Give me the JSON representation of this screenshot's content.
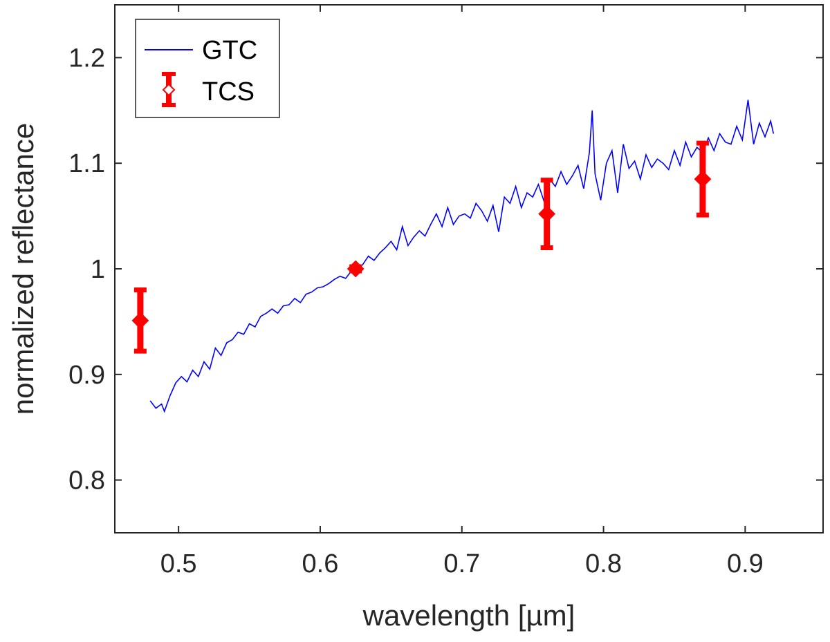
{
  "chart_data": {
    "type": "line",
    "title": "",
    "xlabel": "wavelength [µm]",
    "ylabel": "normalized reflectance",
    "xlim": [
      0.455,
      0.955
    ],
    "ylim": [
      0.75,
      1.25
    ],
    "xticks": [
      0.5,
      0.6,
      0.7,
      0.8,
      0.9
    ],
    "xtick_labels": [
      "0.5",
      "0.6",
      "0.7",
      "0.8",
      "0.9"
    ],
    "yticks": [
      0.8,
      0.9,
      1.0,
      1.1,
      1.2
    ],
    "ytick_labels": [
      "0.8",
      "0.9",
      "1",
      "1.1",
      "1.2"
    ],
    "grid": false,
    "legend": {
      "position": "top-left",
      "entries": [
        "GTC",
        "TCS"
      ]
    },
    "series": [
      {
        "name": "GTC",
        "kind": "line",
        "color": "#0000ff",
        "x": [
          0.48,
          0.484,
          0.488,
          0.49,
          0.494,
          0.498,
          0.502,
          0.506,
          0.51,
          0.514,
          0.518,
          0.522,
          0.526,
          0.53,
          0.534,
          0.538,
          0.542,
          0.546,
          0.55,
          0.554,
          0.558,
          0.562,
          0.566,
          0.57,
          0.574,
          0.578,
          0.582,
          0.586,
          0.59,
          0.594,
          0.598,
          0.602,
          0.606,
          0.61,
          0.614,
          0.618,
          0.622,
          0.626,
          0.63,
          0.634,
          0.638,
          0.642,
          0.646,
          0.65,
          0.654,
          0.658,
          0.662,
          0.666,
          0.67,
          0.674,
          0.678,
          0.682,
          0.686,
          0.69,
          0.694,
          0.698,
          0.702,
          0.706,
          0.71,
          0.714,
          0.718,
          0.722,
          0.726,
          0.73,
          0.734,
          0.738,
          0.742,
          0.746,
          0.75,
          0.754,
          0.758,
          0.762,
          0.766,
          0.77,
          0.774,
          0.778,
          0.782,
          0.786,
          0.79,
          0.792,
          0.794,
          0.798,
          0.802,
          0.806,
          0.81,
          0.814,
          0.818,
          0.822,
          0.826,
          0.83,
          0.834,
          0.838,
          0.842,
          0.846,
          0.85,
          0.854,
          0.858,
          0.862,
          0.866,
          0.87,
          0.874,
          0.878,
          0.882,
          0.886,
          0.89,
          0.894,
          0.898,
          0.902,
          0.906,
          0.91,
          0.914,
          0.918,
          0.92
        ],
        "y": [
          0.875,
          0.868,
          0.872,
          0.865,
          0.88,
          0.892,
          0.898,
          0.893,
          0.904,
          0.898,
          0.912,
          0.905,
          0.925,
          0.918,
          0.93,
          0.933,
          0.94,
          0.938,
          0.948,
          0.945,
          0.955,
          0.958,
          0.962,
          0.958,
          0.965,
          0.966,
          0.972,
          0.968,
          0.976,
          0.978,
          0.982,
          0.983,
          0.986,
          0.99,
          0.993,
          0.991,
          0.998,
          1.0,
          1.004,
          1.012,
          1.008,
          1.015,
          1.02,
          1.026,
          1.018,
          1.04,
          1.022,
          1.03,
          1.036,
          1.031,
          1.042,
          1.052,
          1.04,
          1.058,
          1.042,
          1.05,
          1.052,
          1.048,
          1.062,
          1.055,
          1.045,
          1.06,
          1.035,
          1.068,
          1.062,
          1.078,
          1.058,
          1.072,
          1.068,
          1.08,
          1.064,
          1.085,
          1.078,
          1.092,
          1.08,
          1.088,
          1.098,
          1.076,
          1.11,
          1.15,
          1.09,
          1.065,
          1.1,
          1.112,
          1.072,
          1.118,
          1.095,
          1.102,
          1.085,
          1.108,
          1.096,
          1.104,
          1.1,
          1.094,
          1.112,
          1.098,
          1.12,
          1.106,
          1.115,
          1.11,
          1.124,
          1.112,
          1.128,
          1.12,
          1.118,
          1.135,
          1.122,
          1.16,
          1.118,
          1.138,
          1.125,
          1.14,
          1.128
        ]
      },
      {
        "name": "TCS",
        "kind": "errorbar",
        "color": "#ff0000",
        "x": [
          0.473,
          0.625,
          0.76,
          0.87
        ],
        "y": [
          0.951,
          1.0,
          1.052,
          1.085
        ],
        "yerr": [
          0.029,
          0.002,
          0.032,
          0.034
        ]
      }
    ]
  }
}
